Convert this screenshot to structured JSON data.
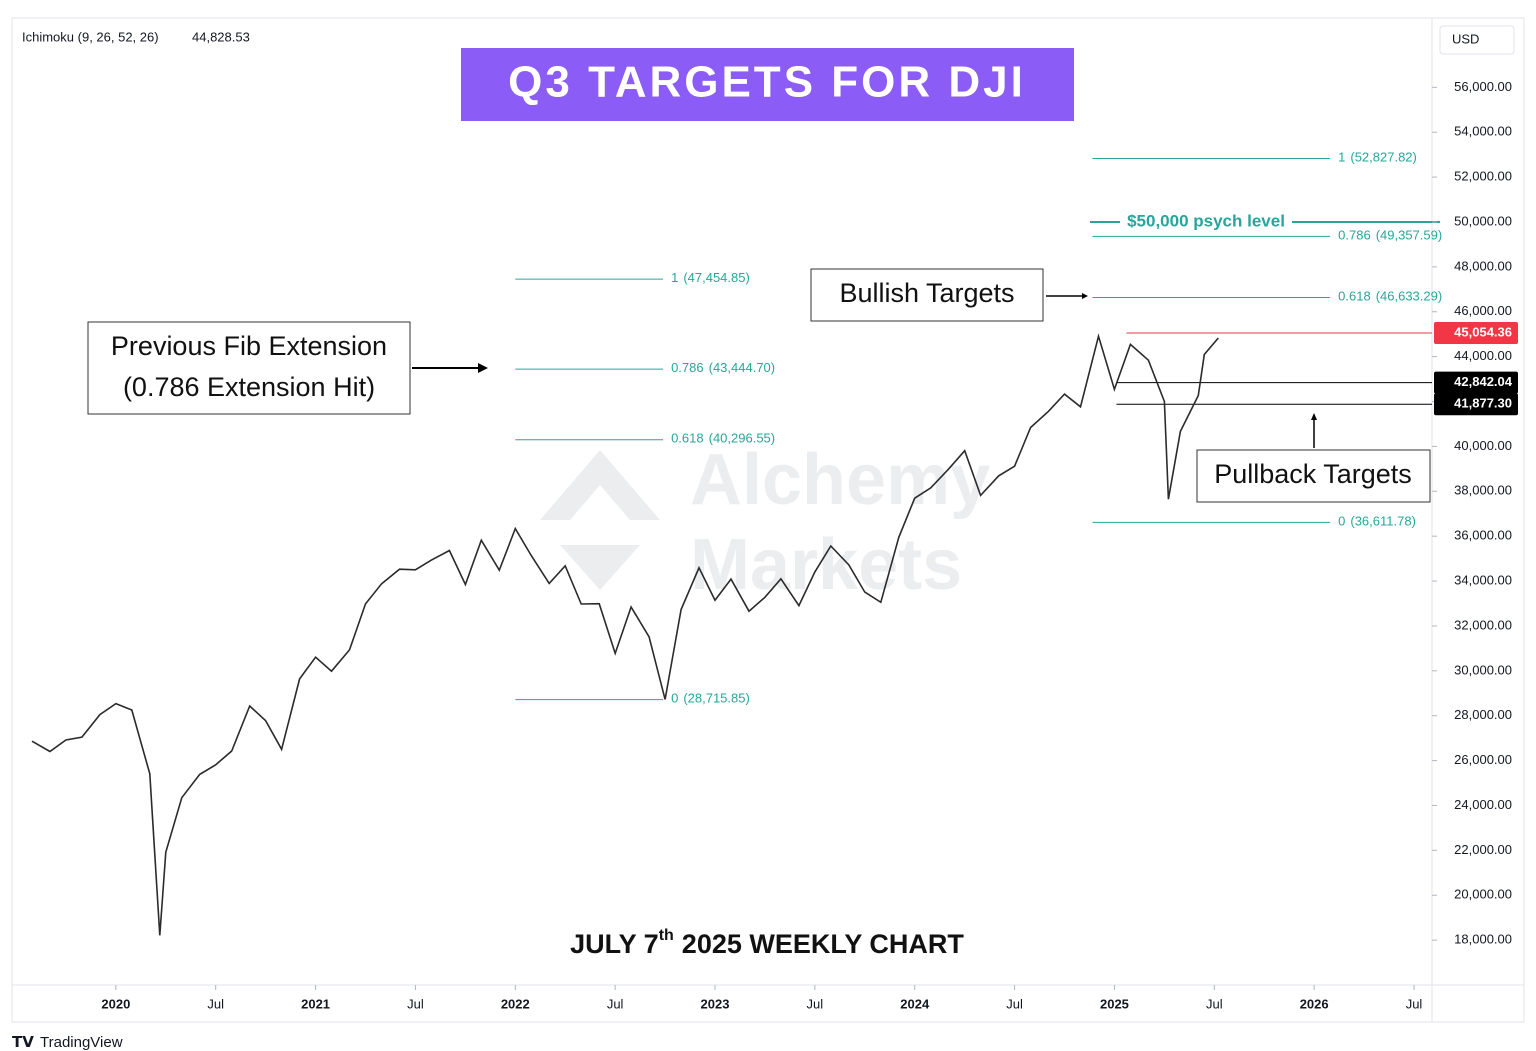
{
  "chart_data": {
    "type": "line",
    "title": "Q3 TARGETS FOR DJI",
    "indicator": "Ichimoku (9, 26, 52, 26)",
    "indicator_value": {
      "value": 44828.53,
      "label": "44,828.53"
    },
    "currency": "USD",
    "footer_parts": [
      "JULY 7",
      "th",
      "2025 WEEKLY CHART"
    ],
    "brand": "TradingView",
    "watermark": [
      "Alchemy",
      "Markets"
    ],
    "x": [
      2019.58,
      2019.67,
      2019.75,
      2019.83,
      2019.92,
      2020.0,
      2020.08,
      2020.17,
      2020.22,
      2020.25,
      2020.33,
      2020.42,
      2020.5,
      2020.58,
      2020.67,
      2020.75,
      2020.83,
      2020.92,
      2021.0,
      2021.08,
      2021.17,
      2021.25,
      2021.33,
      2021.42,
      2021.5,
      2021.58,
      2021.67,
      2021.75,
      2021.83,
      2021.92,
      2022.0,
      2022.08,
      2022.17,
      2022.25,
      2022.33,
      2022.42,
      2022.5,
      2022.58,
      2022.67,
      2022.75,
      2022.83,
      2022.92,
      2023.0,
      2023.08,
      2023.17,
      2023.25,
      2023.33,
      2023.42,
      2023.5,
      2023.58,
      2023.67,
      2023.75,
      2023.83,
      2023.92,
      2024.0,
      2024.08,
      2024.17,
      2024.25,
      2024.33,
      2024.42,
      2024.5,
      2024.58,
      2024.67,
      2024.75,
      2024.83,
      2024.92,
      2025.0,
      2025.08,
      2025.17,
      2025.25,
      2025.27,
      2025.33,
      2025.42,
      2025.45,
      2025.52
    ],
    "series": [
      {
        "name": "DJI",
        "color": "#2b2b2b",
        "values": [
          26864,
          26403,
          26917,
          27046,
          28051,
          28538,
          28256,
          25409,
          18214,
          21917,
          24346,
          25383,
          25813,
          26428,
          28430,
          27782,
          26502,
          29639,
          30606,
          29983,
          30932,
          32982,
          33875,
          34529,
          34503,
          34935,
          35361,
          33844,
          35820,
          34484,
          36338,
          35132,
          33893,
          34678,
          32977,
          32990,
          30775,
          32845,
          31510,
          28726,
          32733,
          34590,
          33147,
          34086,
          32657,
          33274,
          34098,
          32908,
          34408,
          35560,
          34722,
          33508,
          33053,
          35951,
          37690,
          38150,
          38996,
          39807,
          37816,
          38686,
          39119,
          40843,
          41563,
          42330,
          41763,
          44911,
          42544,
          44544,
          43841,
          42002,
          37645,
          40669,
          42270,
          44095,
          44828.53
        ]
      }
    ],
    "xlim": [
      2019.48,
      2026.59
    ],
    "xticks": [
      {
        "value": 2020,
        "label": "2020"
      },
      {
        "value": 2020.5,
        "label": "Jul"
      },
      {
        "value": 2021,
        "label": "2021"
      },
      {
        "value": 2021.5,
        "label": "Jul"
      },
      {
        "value": 2022,
        "label": "2022"
      },
      {
        "value": 2022.5,
        "label": "Jul"
      },
      {
        "value": 2023,
        "label": "2023"
      },
      {
        "value": 2023.5,
        "label": "Jul"
      },
      {
        "value": 2024,
        "label": "2024"
      },
      {
        "value": 2024.5,
        "label": "Jul"
      },
      {
        "value": 2025,
        "label": "2025"
      },
      {
        "value": 2025.5,
        "label": "Jul"
      },
      {
        "value": 2026,
        "label": "2026"
      },
      {
        "value": 2026.5,
        "label": "Jul"
      }
    ],
    "ylim": [
      16000,
      59000
    ],
    "yticks": [
      {
        "value": 18000,
        "label": "18,000.00"
      },
      {
        "value": 20000,
        "label": "20,000.00"
      },
      {
        "value": 22000,
        "label": "22,000.00"
      },
      {
        "value": 24000,
        "label": "24,000.00"
      },
      {
        "value": 26000,
        "label": "26,000.00"
      },
      {
        "value": 28000,
        "label": "28,000.00"
      },
      {
        "value": 30000,
        "label": "30,000.00"
      },
      {
        "value": 32000,
        "label": "32,000.00"
      },
      {
        "value": 34000,
        "label": "34,000.00"
      },
      {
        "value": 36000,
        "label": "36,000.00"
      },
      {
        "value": 38000,
        "label": "38,000.00"
      },
      {
        "value": 40000,
        "label": "40,000.00"
      },
      {
        "value": 42000,
        "label": "42,000.00"
      },
      {
        "value": 44000,
        "label": "44,000.00"
      },
      {
        "value": 46000,
        "label": "46,000.00"
      },
      {
        "value": 48000,
        "label": "48,000.00"
      },
      {
        "value": 50000,
        "label": "50,000.00"
      },
      {
        "value": 52000,
        "label": "52,000.00"
      },
      {
        "value": 54000,
        "label": "54,000.00"
      },
      {
        "value": 56000,
        "label": "56,000.00"
      }
    ],
    "fib_color": "#26a69a",
    "fib_sets": [
      {
        "x_range": [
          2022.0,
          2022.74
        ],
        "levels": [
          {
            "ratio": 1,
            "value": 47454.85,
            "label": "(47,454.85)"
          },
          {
            "ratio": 0.786,
            "value": 43444.7,
            "label": "(43,444.70)"
          },
          {
            "ratio": 0.618,
            "value": 40296.55,
            "label": "(40,296.55)"
          },
          {
            "ratio": 0,
            "value": 28715.85,
            "label": "(28,715.85)"
          }
        ]
      },
      {
        "x_range": [
          2024.89,
          2026.08
        ],
        "levels": [
          {
            "ratio": 1,
            "value": 52827.82,
            "label": "(52,827.82)"
          },
          {
            "ratio": 0.786,
            "value": 49357.59,
            "label": "(49,357.59)"
          },
          {
            "ratio": 0.618,
            "value": 46633.29,
            "label": "(46,633.29)"
          },
          {
            "ratio": 0,
            "value": 36611.78,
            "label": "(36,611.78)"
          }
        ]
      }
    ],
    "price_lines": [
      {
        "value": 45054.36,
        "label": "45,054.36",
        "color": "#f23645",
        "from": 2025.06
      },
      {
        "value": 42842.04,
        "label": "42,842.04",
        "color": "#000000",
        "from": 2025.01
      },
      {
        "value": 41877.3,
        "label": "41,877.30",
        "color": "#000000",
        "from": 2025.01
      }
    ],
    "psych_level": {
      "value": 50000,
      "label": "$50,000 psych level"
    },
    "annotations": {
      "previous_fib": [
        "Previous Fib Extension",
        "(0.786 Extension Hit)"
      ],
      "bullish": "Bullish Targets",
      "pullback": "Pullback Targets"
    }
  }
}
